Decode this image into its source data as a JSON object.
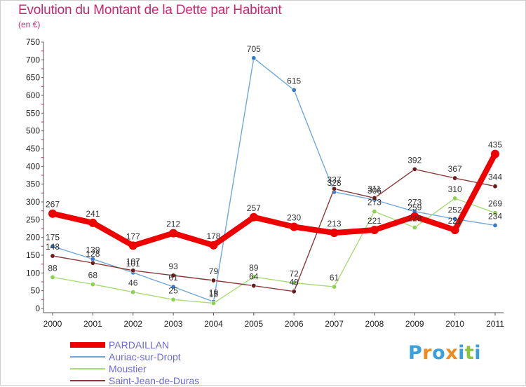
{
  "title": "Evolution du Montant de la Dette par Habitant",
  "subtitle": "(en €)",
  "logo": {
    "text": "Proxiti",
    "letters": [
      {
        "ch": "P",
        "color": "#3aa0dc"
      },
      {
        "ch": "r",
        "color": "#f08a1c"
      },
      {
        "ch": "o",
        "color": "#3aa0dc"
      },
      {
        "ch": "x",
        "color": "#f08a1c"
      },
      {
        "ch": "i",
        "color": "#3aa0dc"
      },
      {
        "ch": "t",
        "color": "#8cc63f"
      },
      {
        "ch": "i",
        "color": "#3aa0dc"
      }
    ]
  },
  "chart_data": {
    "type": "line",
    "title": "Evolution du Montant de la Dette par Habitant",
    "subtitle": "(en €)",
    "xlabel": "",
    "ylabel": "",
    "x": [
      "2000",
      "2001",
      "2002",
      "2003",
      "2004",
      "2005",
      "2006",
      "2007",
      "2008",
      "2009",
      "2010",
      "2011"
    ],
    "ylim": [
      0,
      750
    ],
    "yticks": [
      0,
      50,
      100,
      150,
      200,
      250,
      300,
      350,
      400,
      450,
      500,
      550,
      600,
      650,
      700,
      750
    ],
    "grid": false,
    "legend_position": "bottom-left",
    "series": [
      {
        "name": "PARDAILLAN",
        "color": "#ee0000",
        "marker_color": "#ee0000",
        "emphasis": true,
        "values": [
          267,
          241,
          177,
          212,
          178,
          257,
          230,
          213,
          221,
          259,
          221,
          435
        ],
        "labels": [
          "267",
          "241",
          "177",
          "212",
          "178",
          "257",
          "230",
          "213",
          "221",
          "259",
          "221",
          "435"
        ]
      },
      {
        "name": "Auriac-sur-Dropt",
        "color": "#6fa8dc",
        "marker_color": "#3a7bc8",
        "values": [
          175,
          139,
          101,
          61,
          19,
          705,
          615,
          328,
          306,
          273,
          252,
          234
        ],
        "labels": [
          "175",
          "139",
          "101",
          "61",
          "19",
          "705",
          "615",
          "328",
          "306",
          "273",
          "252",
          "234"
        ]
      },
      {
        "name": "Moustier",
        "color": "#a8dc78",
        "marker_color": "#8cd050",
        "values": [
          88,
          68,
          46,
          25,
          15,
          89,
          72,
          61,
          273,
          228,
          310,
          269
        ],
        "labels": [
          "88",
          "68",
          "46",
          "25",
          "15",
          "89",
          "72",
          "61",
          "273",
          "228",
          "310",
          "269"
        ]
      },
      {
        "name": "Saint-Jean-de-Duras",
        "color": "#8b3a3a",
        "marker_color": "#6b1a1a",
        "values": [
          148,
          128,
          107,
          93,
          79,
          64,
          48,
          337,
          311,
          392,
          367,
          344
        ],
        "labels": [
          "148",
          "128",
          "107",
          "93",
          "79",
          "64",
          "48",
          "337",
          "311",
          "392",
          "367",
          "344"
        ]
      }
    ]
  }
}
